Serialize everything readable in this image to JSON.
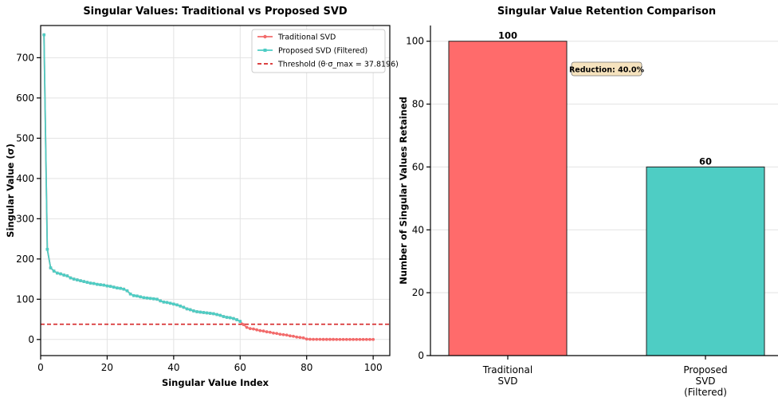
{
  "chart_data": [
    {
      "type": "line",
      "title": "Singular Values: Traditional vs Proposed SVD",
      "xlabel": "Singular Value Index",
      "ylabel": "Singular Value (σ)",
      "xlim": [
        0,
        105
      ],
      "ylim": [
        -40,
        780
      ],
      "xticks": [
        0,
        20,
        40,
        60,
        80,
        100
      ],
      "yticks": [
        0,
        100,
        200,
        300,
        400,
        500,
        600,
        700
      ],
      "grid": true,
      "legend_position": "top-right",
      "series": [
        {
          "name": "Traditional SVD",
          "color": "#f26b6b",
          "marker": "circle",
          "x": [
            1,
            2,
            3,
            4,
            5,
            6,
            7,
            8,
            9,
            10,
            11,
            12,
            13,
            14,
            15,
            16,
            17,
            18,
            19,
            20,
            21,
            22,
            23,
            24,
            25,
            26,
            27,
            28,
            29,
            30,
            31,
            32,
            33,
            34,
            35,
            36,
            37,
            38,
            39,
            40,
            41,
            42,
            43,
            44,
            45,
            46,
            47,
            48,
            49,
            50,
            51,
            52,
            53,
            54,
            55,
            56,
            57,
            58,
            59,
            60,
            61,
            62,
            63,
            64,
            65,
            66,
            67,
            68,
            69,
            70,
            71,
            72,
            73,
            74,
            75,
            76,
            77,
            78,
            79,
            80,
            81,
            82,
            83,
            84,
            85,
            86,
            87,
            88,
            89,
            90,
            91,
            92,
            93,
            94,
            95,
            96,
            97,
            98,
            99,
            100
          ],
          "values": [
            757,
            224,
            178,
            170,
            165,
            163,
            160,
            158,
            153,
            150,
            148,
            146,
            144,
            142,
            140,
            139,
            137,
            136,
            135,
            133,
            132,
            130,
            128,
            127,
            125,
            121,
            113,
            109,
            108,
            106,
            104,
            103,
            102,
            101,
            100,
            96,
            93,
            92,
            90,
            88,
            86,
            83,
            80,
            76,
            74,
            71,
            69,
            68,
            67,
            66,
            65,
            64,
            62,
            60,
            57,
            55,
            54,
            52,
            49,
            45,
            37,
            30,
            27,
            26,
            24,
            22,
            21,
            19,
            18,
            16,
            15,
            13,
            12,
            11,
            9,
            8,
            6,
            5,
            4,
            1,
            0.5,
            0.4,
            0.3,
            0.3,
            0.2,
            0.2,
            0.2,
            0.2,
            0.1,
            0.1,
            0.1,
            0.1,
            0.1,
            0.1,
            0.1,
            0.1,
            0.1,
            0.1,
            0.1,
            0.1
          ]
        },
        {
          "name": "Proposed SVD (Filtered)",
          "color": "#4ecdc4",
          "marker": "square",
          "x": [
            1,
            2,
            3,
            4,
            5,
            6,
            7,
            8,
            9,
            10,
            11,
            12,
            13,
            14,
            15,
            16,
            17,
            18,
            19,
            20,
            21,
            22,
            23,
            24,
            25,
            26,
            27,
            28,
            29,
            30,
            31,
            32,
            33,
            34,
            35,
            36,
            37,
            38,
            39,
            40,
            41,
            42,
            43,
            44,
            45,
            46,
            47,
            48,
            49,
            50,
            51,
            52,
            53,
            54,
            55,
            56,
            57,
            58,
            59,
            60
          ],
          "values": [
            757,
            224,
            178,
            170,
            165,
            163,
            160,
            158,
            153,
            150,
            148,
            146,
            144,
            142,
            140,
            139,
            137,
            136,
            135,
            133,
            132,
            130,
            128,
            127,
            125,
            121,
            113,
            109,
            108,
            106,
            104,
            103,
            102,
            101,
            100,
            96,
            93,
            92,
            90,
            88,
            86,
            83,
            80,
            76,
            74,
            71,
            69,
            68,
            67,
            66,
            65,
            64,
            62,
            60,
            57,
            55,
            54,
            52,
            49,
            45
          ]
        }
      ],
      "threshold": {
        "name": "Threshold (θ·σ_max = 37.8196)",
        "value": 37.8196,
        "color": "#d62728",
        "style": "dashed"
      }
    },
    {
      "type": "bar",
      "title": "Singular Value Retention Comparison",
      "xlabel": "",
      "ylabel": "Number of Singular Values Retained",
      "ylim": [
        0,
        105
      ],
      "yticks": [
        0,
        20,
        40,
        60,
        80,
        100
      ],
      "grid": true,
      "categories": [
        "Traditional\nSVD",
        "Proposed\nSVD\n(Filtered)"
      ],
      "values": [
        100,
        60
      ],
      "data_labels": [
        "100",
        "60"
      ],
      "colors": [
        "#ff6b6b",
        "#4ecdc4"
      ],
      "annotation": "Reduction: 40.0%"
    }
  ]
}
